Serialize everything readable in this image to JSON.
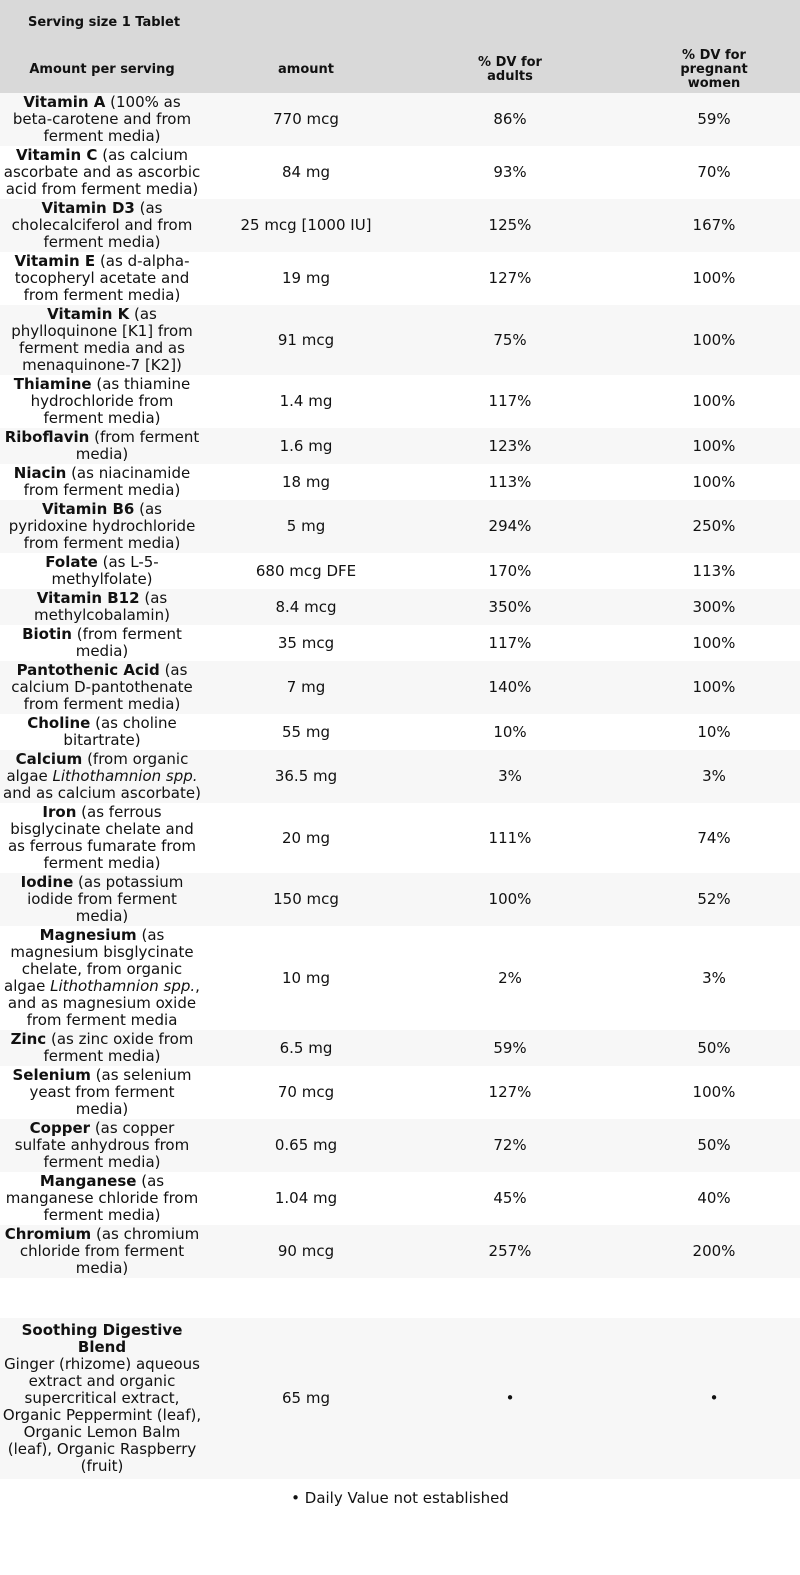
{
  "serving": "Serving size 1 Tablet",
  "header": [
    "Amount per serving",
    "amount",
    "% DV for adults",
    "% DV for pregnant women"
  ],
  "rows": [
    {
      "name": "Vitamin A",
      "detail": [
        {
          "text": "(100% as beta-carotene and from ferment media)"
        }
      ],
      "amount": "770 mcg",
      "adults": "86%",
      "pregnant": "59%"
    },
    {
      "name": "Vitamin C",
      "detail": [
        {
          "text": "(as calcium ascorbate and as ascorbic acid from ferment media)"
        }
      ],
      "amount": "84 mg",
      "adults": "93%",
      "pregnant": "70%"
    },
    {
      "name": "Vitamin D3",
      "detail": [
        {
          "text": "(as cholecalciferol and from ferment media)"
        }
      ],
      "amount": "25 mcg [1000 IU]",
      "adults": "125%",
      "pregnant": "167%"
    },
    {
      "name": "Vitamin E",
      "detail": [
        {
          "text": "(as d-alpha-tocopheryl acetate and from ferment media)"
        }
      ],
      "amount": "19 mg",
      "adults": "127%",
      "pregnant": "100%"
    },
    {
      "name": "Vitamin K",
      "detail": [
        {
          "text": "(as phylloquinone [K1] from ferment media and as menaquinone-7 [K2])"
        }
      ],
      "amount": "91 mcg",
      "adults": "75%",
      "pregnant": "100%"
    },
    {
      "name": "Thiamine",
      "detail": [
        {
          "text": "(as thiamine hydrochloride from ferment media)"
        }
      ],
      "amount": "1.4 mg",
      "adults": "117%",
      "pregnant": "100%"
    },
    {
      "name": "Riboflavin",
      "detail": [
        {
          "text": "(from ferment media)"
        }
      ],
      "amount": "1.6 mg",
      "adults": "123%",
      "pregnant": "100%"
    },
    {
      "name": "Niacin",
      "detail": [
        {
          "text": "(as niacinamide from ferment media)"
        }
      ],
      "amount": "18 mg",
      "adults": "113%",
      "pregnant": "100%"
    },
    {
      "name": "Vitamin B6",
      "detail": [
        {
          "text": "(as pyridoxine hydrochloride from ferment media)"
        }
      ],
      "amount": "5 mg",
      "adults": "294%",
      "pregnant": "250%"
    },
    {
      "name": "Folate",
      "detail": [
        {
          "text": "(as L-5-methylfolate)"
        }
      ],
      "amount": "680 mcg DFE",
      "adults": "170%",
      "pregnant": "113%"
    },
    {
      "name": "Vitamin B12",
      "detail": [
        {
          "text": "(as methylcobalamin)"
        }
      ],
      "amount": "8.4 mcg",
      "adults": "350%",
      "pregnant": "300%"
    },
    {
      "name": "Biotin",
      "detail": [
        {
          "text": "(from ferment media)"
        }
      ],
      "amount": "35 mcg",
      "adults": "117%",
      "pregnant": "100%"
    },
    {
      "name": "Pantothenic Acid",
      "detail": [
        {
          "text": "(as calcium D-pantothenate from ferment media)"
        }
      ],
      "amount": "7 mg",
      "adults": "140%",
      "pregnant": "100%"
    },
    {
      "name": "Choline",
      "detail": [
        {
          "text": "(as choline bitartrate)"
        }
      ],
      "amount": "55 mg",
      "adults": "10%",
      "pregnant": "10%"
    },
    {
      "name": "Calcium",
      "detail": [
        {
          "text": "(from organic algae "
        },
        {
          "text": "Lithothamnion spp.",
          "italic": true
        },
        {
          "text": " and as calcium ascorbate)"
        }
      ],
      "amount": "36.5 mg",
      "adults": "3%",
      "pregnant": "3%"
    },
    {
      "name": "Iron",
      "detail": [
        {
          "text": "(as ferrous bisglycinate chelate and as ferrous fumarate from ferment media)"
        }
      ],
      "amount": "20 mg",
      "adults": "111%",
      "pregnant": "74%"
    },
    {
      "name": "Iodine",
      "detail": [
        {
          "text": "(as potassium iodide from ferment media)"
        }
      ],
      "amount": "150 mcg",
      "adults": "100%",
      "pregnant": "52%"
    },
    {
      "name": "Magnesium",
      "detail": [
        {
          "text": "(as magnesium bisglycinate chelate, from organic algae "
        },
        {
          "text": "Lithothamnion spp.",
          "italic": true
        },
        {
          "text": ", and as magnesium oxide from ferment media"
        }
      ],
      "amount": "10 mg",
      "adults": "2%",
      "pregnant": "3%"
    },
    {
      "name": "Zinc",
      "detail": [
        {
          "text": "(as zinc oxide from ferment media)"
        }
      ],
      "amount": "6.5 mg",
      "adults": "59%",
      "pregnant": "50%"
    },
    {
      "name": "Selenium",
      "detail": [
        {
          "text": "(as selenium yeast from ferment media)"
        }
      ],
      "amount": "70 mcg",
      "adults": "127%",
      "pregnant": "100%"
    },
    {
      "name": "Copper",
      "detail": [
        {
          "text": "(as copper sulfate anhydrous from ferment media)"
        }
      ],
      "amount": "0.65 mg",
      "adults": "72%",
      "pregnant": "50%"
    },
    {
      "name": "Manganese",
      "detail": [
        {
          "text": "(as manganese chloride from ferment media)"
        }
      ],
      "amount": "1.04 mg",
      "adults": "45%",
      "pregnant": "40%"
    },
    {
      "name": "Chromium",
      "detail": [
        {
          "text": "(as chromium chloride from ferment media)"
        }
      ],
      "amount": "90 mcg",
      "adults": "257%",
      "pregnant": "200%"
    }
  ],
  "blend": {
    "name": "Soothing Digestive Blend",
    "detail": "Ginger (rhizome) aqueous extract and organic supercritical extract, Organic Peppermint (leaf), Organic Lemon Balm (leaf), Organic Raspberry (fruit)",
    "amount": "65 mg",
    "adults": "•",
    "pregnant": "•"
  },
  "footnote": "• Daily Value not established"
}
